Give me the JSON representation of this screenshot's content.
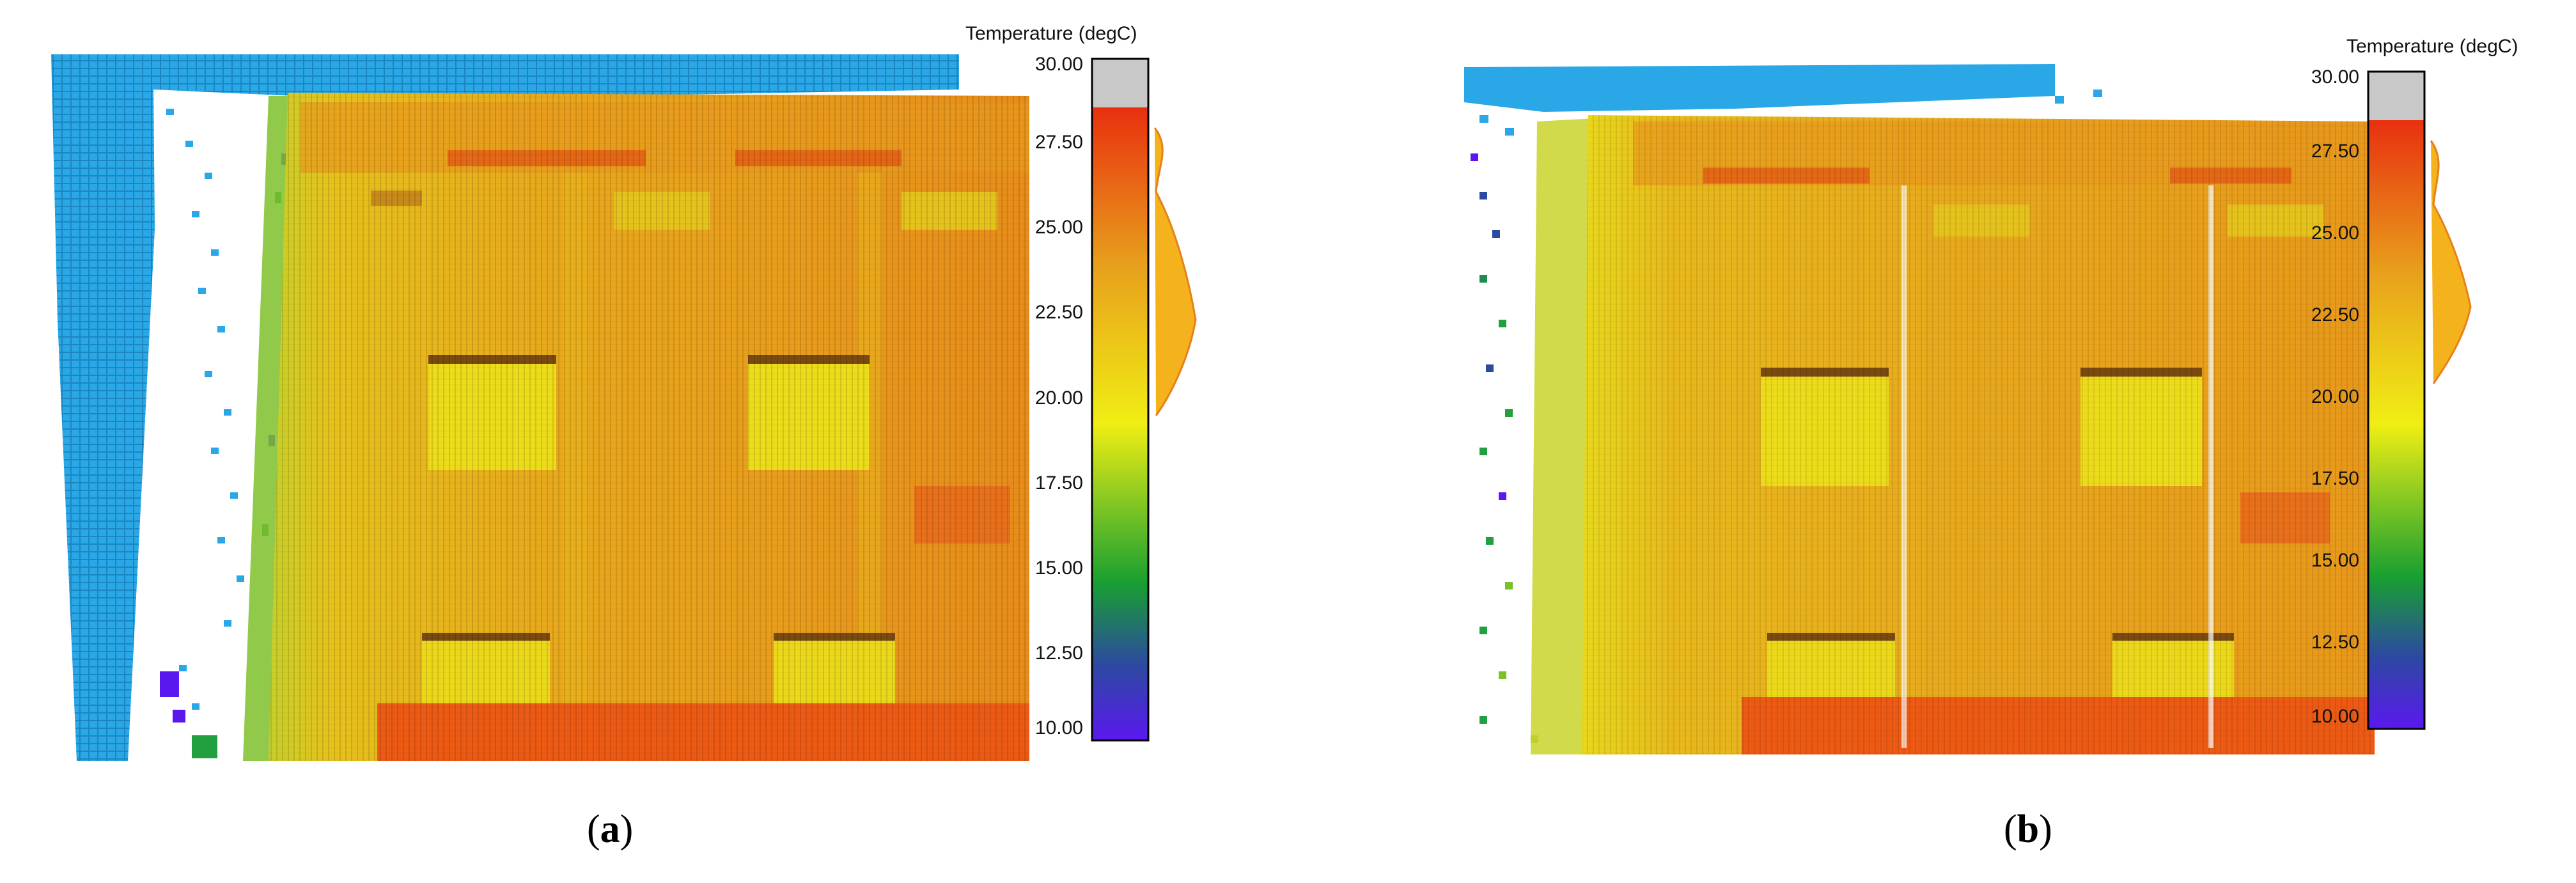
{
  "panels": [
    {
      "label_open": "(",
      "label_letter": "a",
      "label_close": ")",
      "colorbar": {
        "title": "Temperature (degC)",
        "ticks": [
          "30.00",
          "27.50",
          "25.00",
          "22.50",
          "20.00",
          "17.50",
          "15.00",
          "12.50",
          "10.00"
        ]
      }
    },
    {
      "label_open": "(",
      "label_letter": "b",
      "label_close": ")",
      "colorbar": {
        "title": "Temperature (degC)",
        "ticks": [
          "30.00",
          "27.50",
          "25.00",
          "22.50",
          "20.00",
          "17.50",
          "15.00",
          "12.50",
          "10.00"
        ]
      }
    }
  ],
  "colors": {
    "sky_blue": "#2aa7e6",
    "facade_orange": "#e8a21a",
    "window_yellow": "#e8e21a",
    "band_red": "#ec5a14",
    "saturation_grey": "#c8c8c8"
  }
}
